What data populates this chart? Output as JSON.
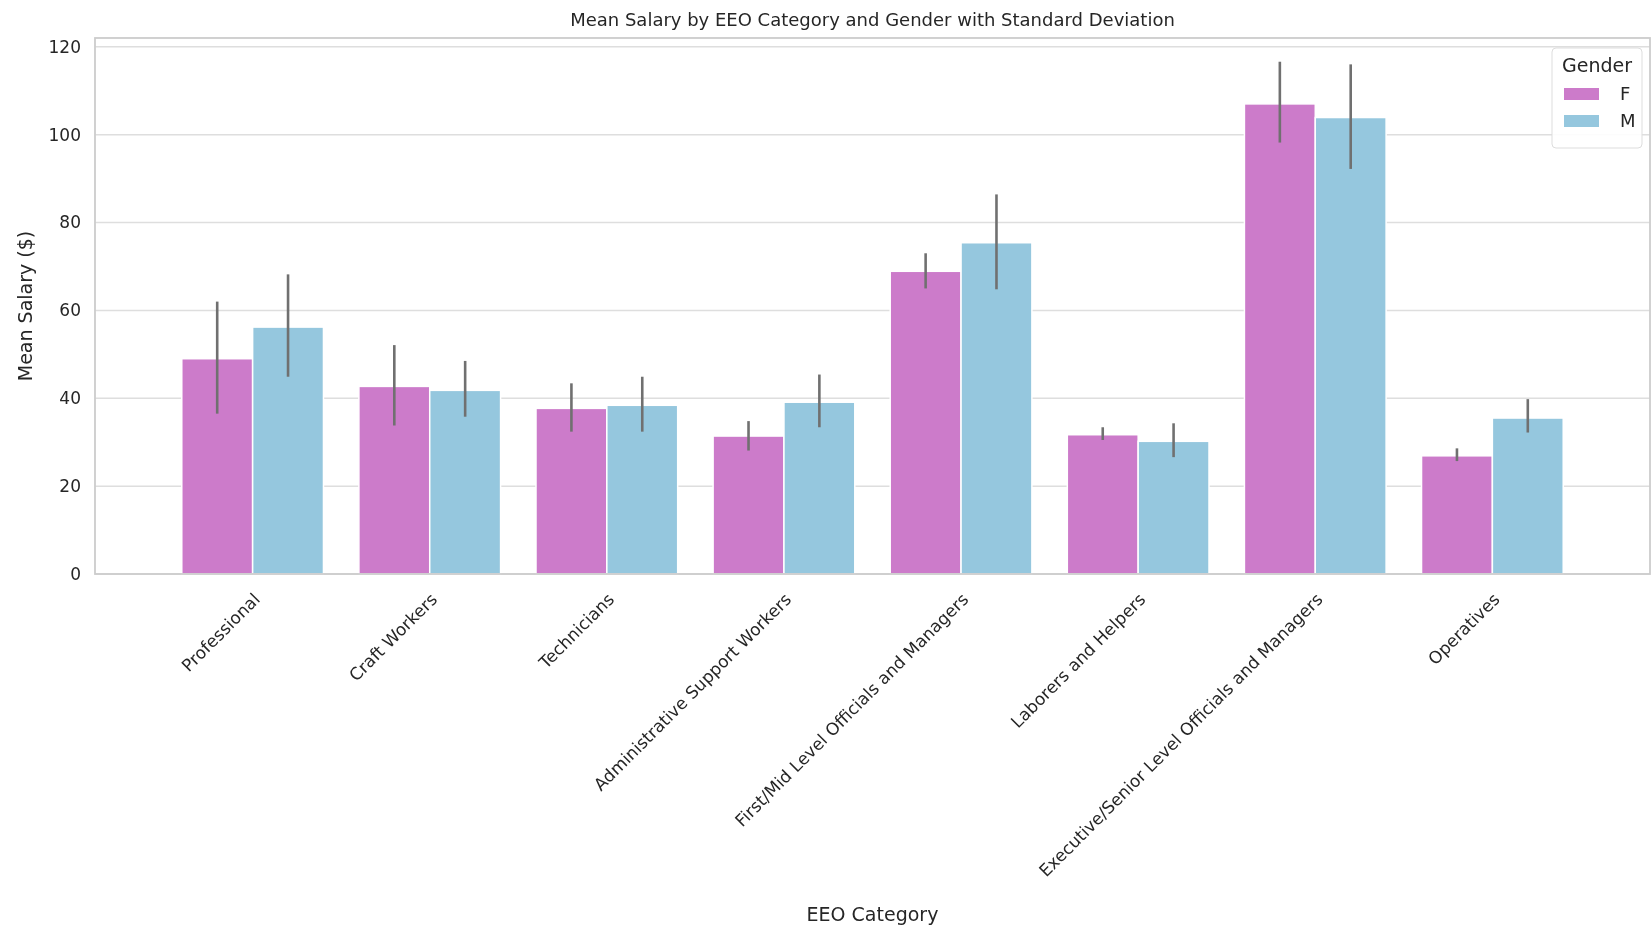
{
  "chart_data": {
    "type": "bar",
    "title": "Mean Salary by EEO Category and Gender with Standard Deviation",
    "xlabel": "EEO Category",
    "ylabel": "Mean Salary ($)",
    "legend_title": "Gender",
    "legend": "top right",
    "grid": "y",
    "categories": [
      "Professional",
      "Craft Workers",
      "Technicians",
      "Administrative Support Workers",
      "First/Mid Level Officials and Managers",
      "Laborers and Helpers",
      "Executive/Senior Level Officials and Managers",
      "Operatives"
    ],
    "ylim": [
      0,
      122
    ],
    "yticks": [
      0,
      20,
      40,
      60,
      80,
      100,
      120
    ],
    "series": [
      {
        "name": "F",
        "color": "#cc7bca",
        "values": [
          49,
          42.7,
          37.7,
          31.4,
          68.9,
          31.7,
          107,
          26.9
        ],
        "errors": [
          [
            36.5,
            62
          ],
          [
            33.8,
            52.1
          ],
          [
            32.4,
            43.4
          ],
          [
            28.1,
            34.8
          ],
          [
            65,
            73
          ],
          [
            30.5,
            33.4
          ],
          [
            98.2,
            116.6
          ],
          [
            25.7,
            28.6
          ]
        ]
      },
      {
        "name": "M",
        "color": "#95c7de",
        "values": [
          56.2,
          41.8,
          38.4,
          39.1,
          75.4,
          30.2,
          103.9,
          35.5
        ],
        "errors": [
          [
            44.9,
            68.2
          ],
          [
            35.8,
            48.5
          ],
          [
            32.4,
            44.9
          ],
          [
            33.4,
            45.4
          ],
          [
            64.8,
            86.4
          ],
          [
            26.6,
            34.3
          ],
          [
            92.2,
            116
          ],
          [
            32.2,
            39.8
          ]
        ]
      }
    ]
  }
}
